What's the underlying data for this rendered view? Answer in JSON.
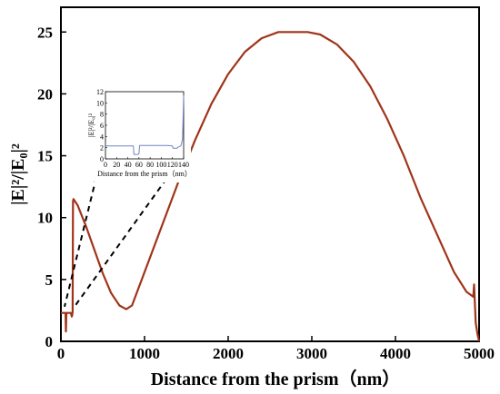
{
  "chart_data": [
    {
      "type": "line",
      "xlabel": "Distance from the prism（nm）",
      "ylabel": "|E|²/|E₀|²",
      "xlim": [
        0,
        5000
      ],
      "ylim": [
        0,
        27
      ],
      "xticks": [
        "0",
        "1000",
        "2000",
        "3000",
        "4000",
        "5000"
      ],
      "yticks": [
        "0",
        "5",
        "10",
        "15",
        "20",
        "25"
      ],
      "grid": false,
      "color": "#a0341a",
      "series": [
        {
          "x": [
            0,
            20,
            40,
            55,
            60,
            65,
            80,
            100,
            120,
            130,
            135,
            140,
            145,
            150,
            200,
            300,
            400,
            500,
            600,
            700,
            780,
            850,
            1000,
            1200,
            1400,
            1600,
            1800,
            2000,
            2200,
            2400,
            2600,
            2800,
            2950,
            3100,
            3300,
            3500,
            3700,
            3900,
            4100,
            4300,
            4500,
            4700,
            4850,
            4930,
            4940,
            4950,
            4960,
            4980,
            5000
          ],
          "y": [
            2.3,
            2.3,
            2.3,
            2.3,
            0.8,
            2.3,
            2.3,
            2.3,
            2.3,
            2.0,
            2.1,
            2.4,
            11.3,
            11.5,
            11.0,
            9.3,
            7.4,
            5.5,
            3.9,
            2.9,
            2.6,
            2.9,
            5.6,
            9.2,
            12.8,
            16.2,
            19.2,
            21.6,
            23.4,
            24.5,
            25.0,
            25.0,
            25.0,
            24.8,
            24.0,
            22.6,
            20.6,
            18.0,
            15.0,
            11.6,
            8.6,
            5.6,
            4.0,
            3.6,
            4.6,
            3.0,
            1.5,
            0.6,
            0.0
          ]
        }
      ]
    },
    {
      "type": "line",
      "xlabel": "Distance from the prism（nm）",
      "ylabel": "|E|²/|E₀|²",
      "xlim": [
        0,
        140
      ],
      "ylim": [
        0,
        12
      ],
      "xticks": [
        "0",
        "20",
        "40",
        "60",
        "80",
        "100",
        "120",
        "140"
      ],
      "yticks": [
        "0",
        "2",
        "4",
        "6",
        "8",
        "10",
        "12"
      ],
      "color": "#6f86c4",
      "series": [
        {
          "x": [
            0,
            20,
            40,
            50,
            51,
            58,
            60,
            61,
            70,
            90,
            110,
            120,
            121,
            128,
            130,
            135,
            138,
            140
          ],
          "y": [
            2.3,
            2.3,
            2.3,
            2.3,
            0.8,
            0.8,
            0.9,
            2.4,
            2.4,
            2.4,
            2.4,
            2.3,
            1.9,
            1.9,
            2.1,
            2.3,
            3.5,
            11.3
          ]
        }
      ]
    }
  ]
}
